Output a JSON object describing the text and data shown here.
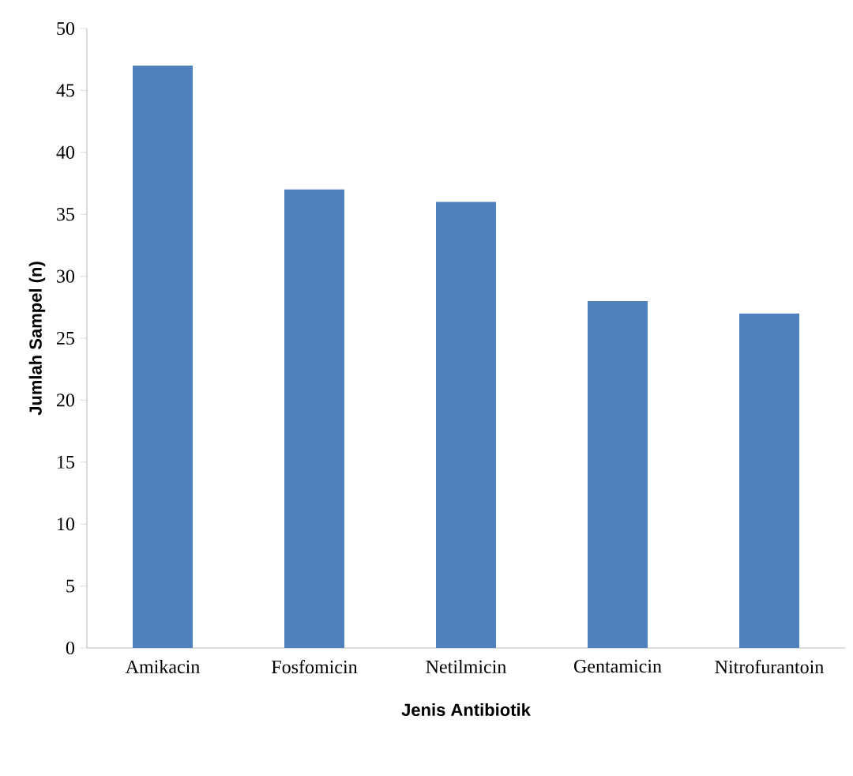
{
  "chart_data": {
    "type": "bar",
    "xlabel": "Jenis Antibiotik",
    "ylabel": "Jumlah Sampel (n)",
    "categories": [
      "Amikacin",
      "Fosfomicin",
      "Netilmicin",
      "Gentamicin",
      "Nitrofurantoin"
    ],
    "values": [
      47,
      37,
      36,
      28,
      27
    ],
    "color": "#4f81bd",
    "ylim": [
      0,
      50
    ],
    "yticks": [
      0,
      5,
      10,
      15,
      20,
      25,
      30,
      35,
      40,
      45,
      50
    ],
    "grid": false
  }
}
